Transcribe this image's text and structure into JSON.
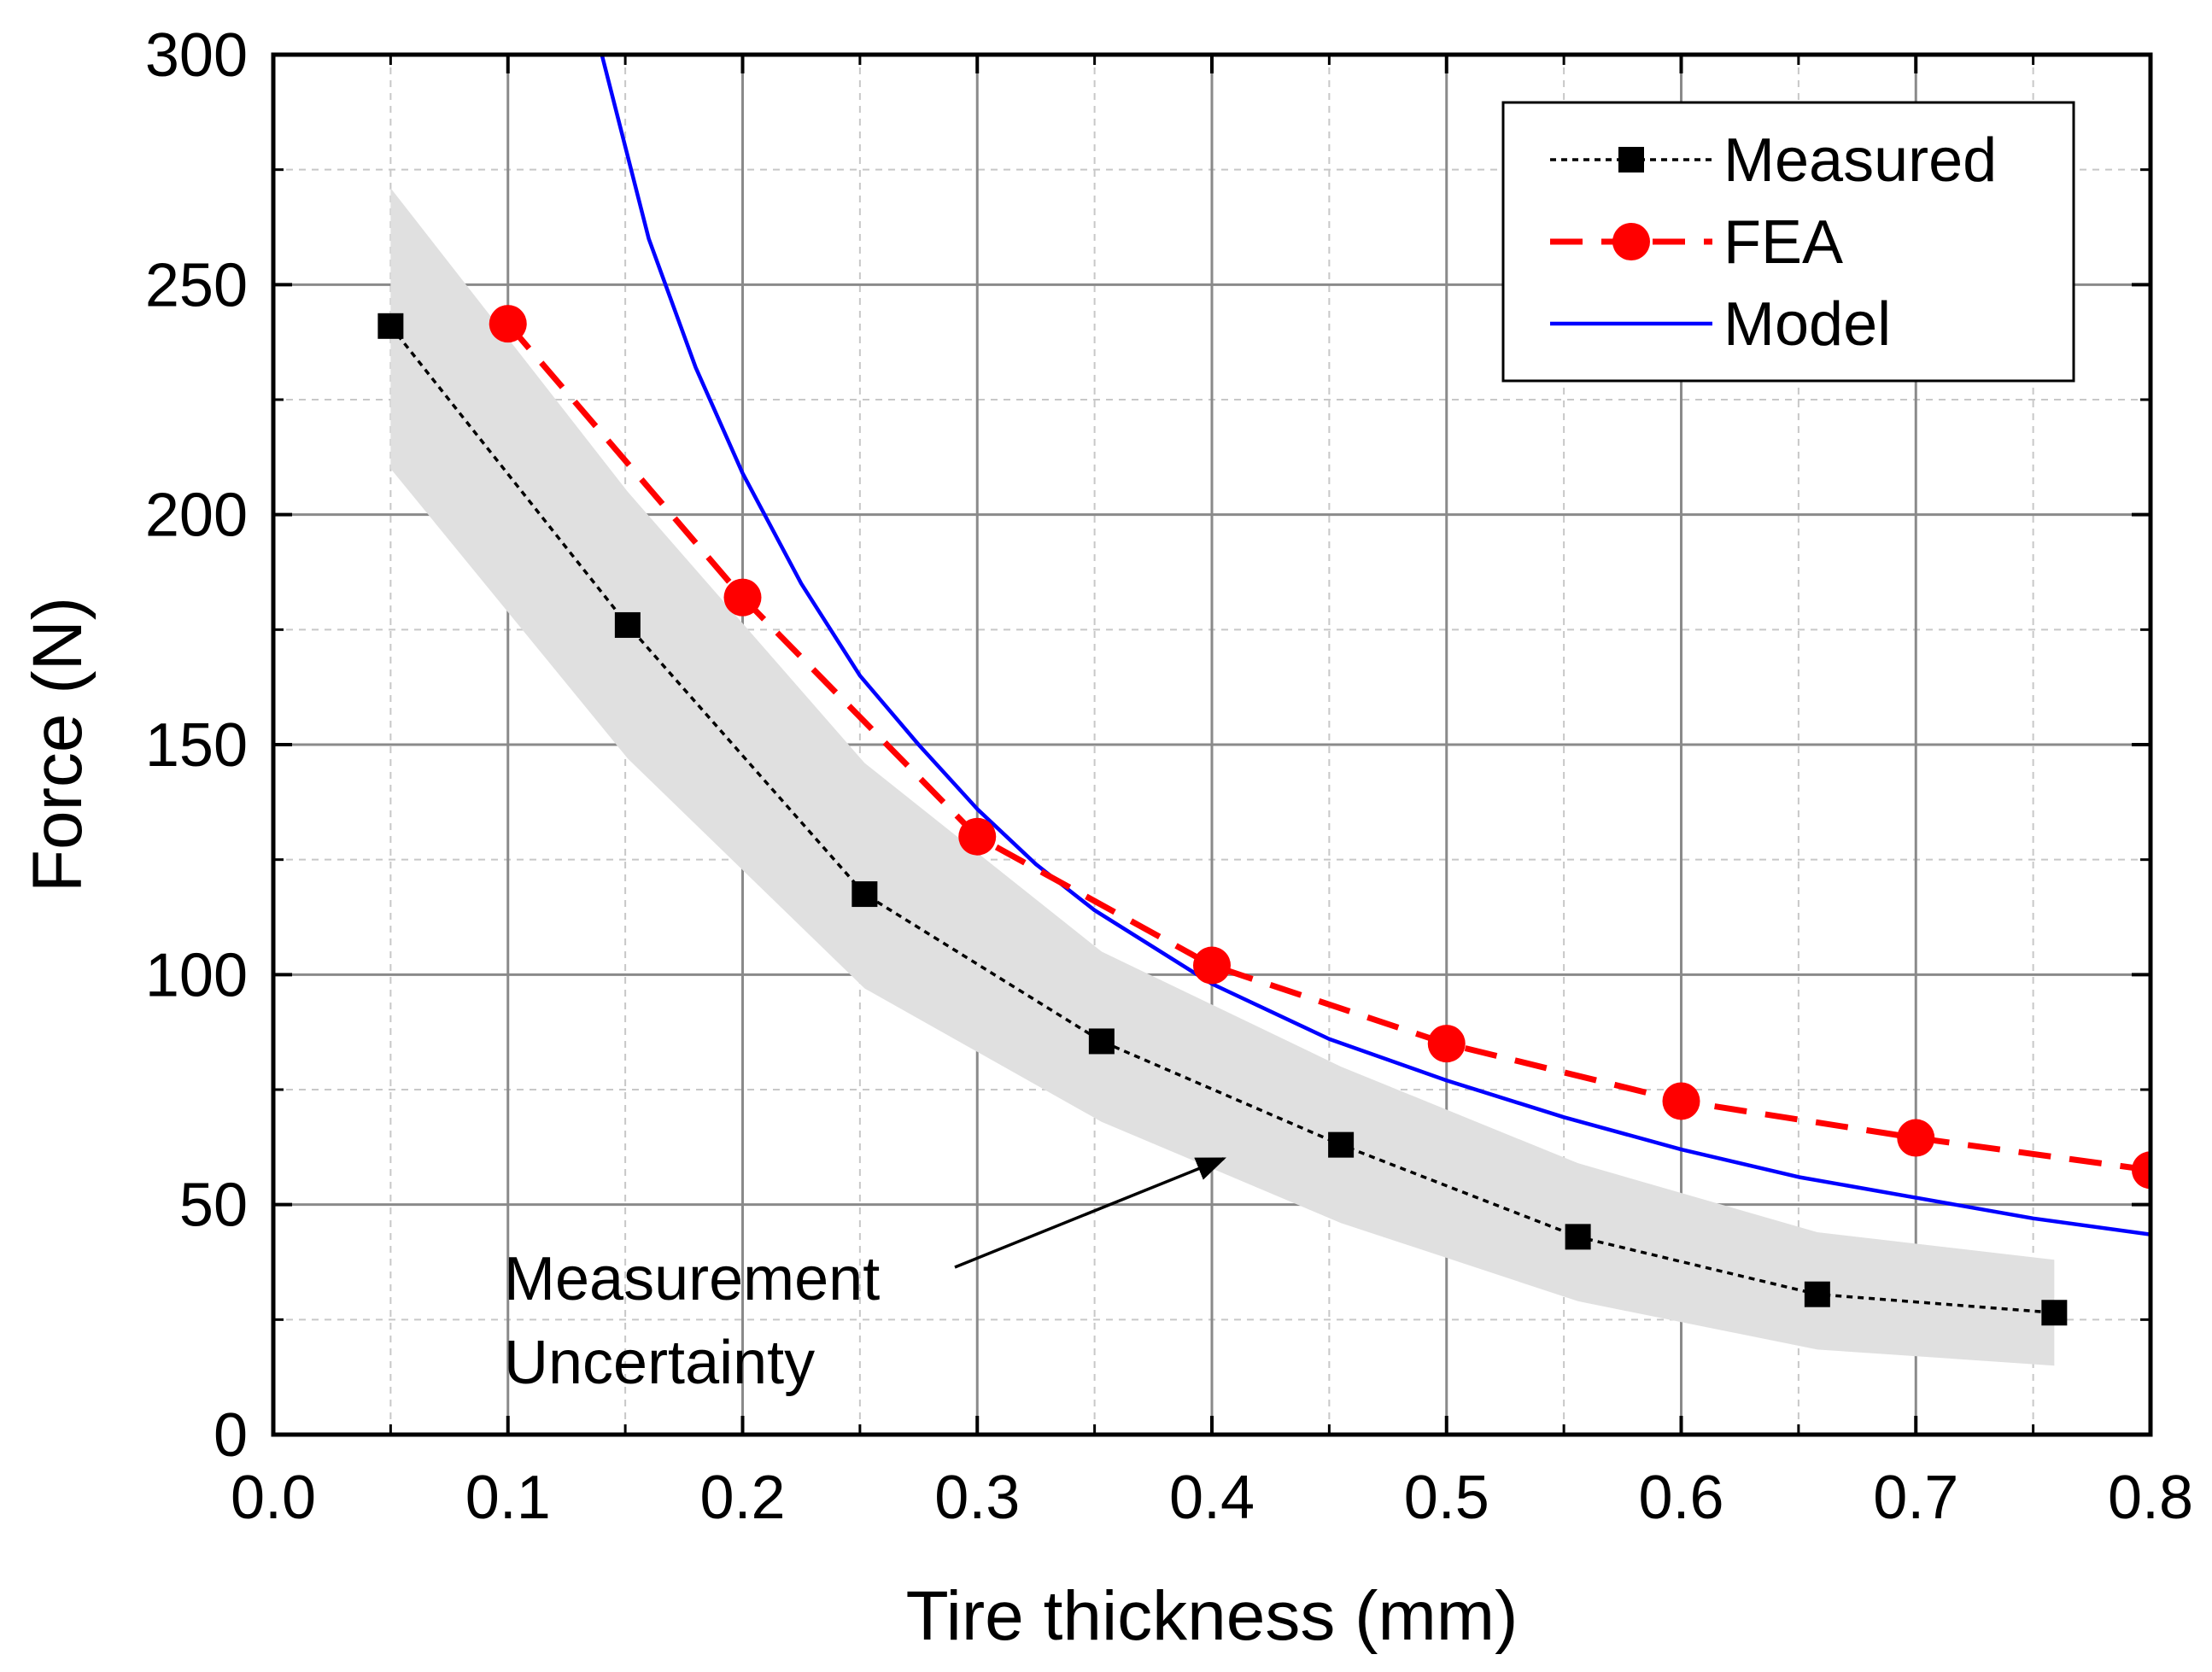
{
  "chart_data": {
    "type": "line",
    "title": "",
    "xlabel": "Tire thickness (mm)",
    "ylabel": "Force (N)",
    "xlim": [
      0.0,
      0.8
    ],
    "ylim": [
      0,
      300
    ],
    "x_ticks": [
      "0.0",
      "0.1",
      "0.2",
      "0.3",
      "0.4",
      "0.5",
      "0.6",
      "0.7",
      "0.8"
    ],
    "y_ticks": [
      "0",
      "50",
      "100",
      "150",
      "200",
      "250",
      "300"
    ],
    "x_tick_values": [
      0.0,
      0.1,
      0.2,
      0.3,
      0.4,
      0.5,
      0.6,
      0.7,
      0.8
    ],
    "y_tick_values": [
      0,
      50,
      100,
      150,
      200,
      250,
      300
    ],
    "grid": true,
    "legend_position": "top-right",
    "series": [
      {
        "name": "Measured",
        "style": "dotted-line-square-markers",
        "color": "#000000",
        "x": [
          0.05,
          0.151,
          0.252,
          0.353,
          0.455,
          0.556,
          0.658,
          0.759
        ],
        "y": [
          241,
          176,
          117.5,
          85.5,
          63,
          43,
          30.5,
          26.5
        ]
      },
      {
        "name": "FEA",
        "style": "dashed-line-circle-markers",
        "color": "#ff0000",
        "x": [
          0.1,
          0.2,
          0.3,
          0.4,
          0.5,
          0.6,
          0.7,
          0.8
        ],
        "y": [
          241.5,
          182,
          130,
          102,
          85,
          72.5,
          64.5,
          57.5
        ]
      },
      {
        "name": "Model",
        "style": "solid-line",
        "color": "#0000ff",
        "x": [
          0.14,
          0.16,
          0.18,
          0.2,
          0.225,
          0.25,
          0.275,
          0.3,
          0.325,
          0.35,
          0.4,
          0.45,
          0.5,
          0.55,
          0.6,
          0.65,
          0.7,
          0.75,
          0.8
        ],
        "y": [
          300,
          260,
          232,
          209,
          185,
          165,
          150,
          136,
          124,
          114,
          98,
          86,
          77,
          69,
          62,
          56,
          51.5,
          47,
          43.5
        ]
      }
    ],
    "uncertainty_band": {
      "x": [
        0.05,
        0.151,
        0.252,
        0.353,
        0.455,
        0.556,
        0.658,
        0.759
      ],
      "upper": [
        271,
        205,
        146,
        105,
        80,
        59,
        44,
        38
      ],
      "lower": [
        210,
        147,
        97,
        68,
        46,
        29,
        18.5,
        15
      ],
      "color": "#e0e0e0"
    },
    "annotations": [
      {
        "lines": [
          "Measurement",
          "Uncertainty"
        ],
        "arrow_to_x": 0.405,
        "arrow_to_y": 60
      }
    ]
  }
}
